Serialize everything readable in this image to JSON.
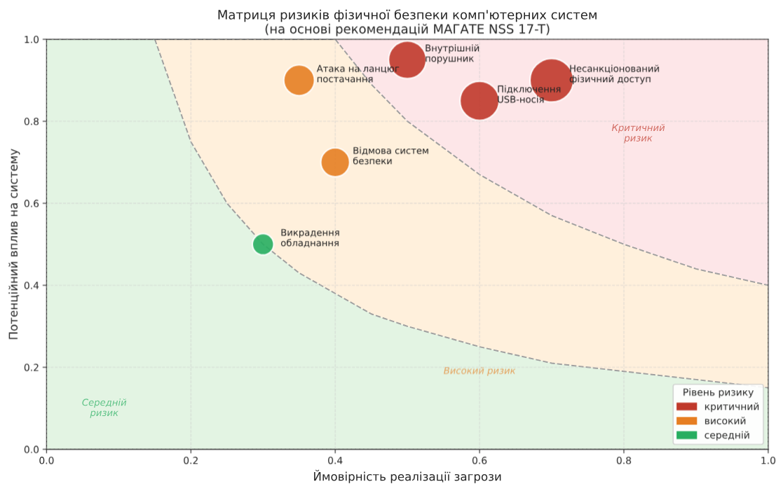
{
  "chart_data": {
    "type": "bubble",
    "title": "Матриця ризиків фізичної безпеки комп'ютерних систем\n(на основі рекомендацій МАГАТЕ NSS 17-T)",
    "xlabel": "Ймовірність реалізації загрози",
    "ylabel": "Потенційний вплив на систему",
    "legend_title": "Рівень ризику",
    "xlim": [
      0.0,
      1.0
    ],
    "ylim": [
      0.0,
      1.0
    ],
    "xticks": [
      "0.0",
      0.2,
      0.4,
      0.6,
      0.8,
      "1.0"
    ],
    "yticks": [
      "0.0",
      0.2,
      0.4,
      0.6,
      0.8,
      "1.0"
    ],
    "grid": true,
    "legend": "bottom right",
    "stacked": true,
    "series": [
      {
        "type": "area",
        "color": "#e3f4e3",
        "line_style": "dashed",
        "x": [
          0,
          0.15,
          0.2,
          0.25,
          0.3,
          0.35,
          0.4,
          0.45,
          0.5,
          0.6,
          0.7,
          0.8,
          0.9,
          1.0
        ],
        "values": [
          1,
          1,
          0.75,
          0.6,
          0.5,
          0.43,
          0.38,
          0.33,
          0.3,
          0.25,
          0.21,
          0.19,
          0.17,
          0.15
        ]
      },
      {
        "type": "area",
        "color": "#fff0dc",
        "line_style": "dashed",
        "x": [
          0,
          0.15,
          0.2,
          0.25,
          0.3,
          0.35,
          0.4,
          0.45,
          0.5,
          0.6,
          0.7,
          0.8,
          0.9,
          1.0
        ],
        "values": [
          0,
          0,
          0.25,
          0.4,
          0.5,
          0.57,
          0.62,
          0.56,
          0.5,
          0.42,
          0.36,
          0.31,
          0.27,
          0.25
        ]
      },
      {
        "type": "area",
        "color": "#fde6e8",
        "x": [
          0,
          0.15,
          0.2,
          0.25,
          0.3,
          0.35,
          0.4,
          0.45,
          0.5,
          0.6,
          0.7,
          0.8,
          0.9,
          1.0
        ],
        "values": [
          0,
          0,
          0,
          0,
          0,
          0,
          0,
          0.11,
          0.2,
          0.33,
          0.43,
          0.5,
          0.56,
          0.6
        ]
      },
      {
        "name": "критичний",
        "color": "#c0392b",
        "x": [
          0.5,
          0.6,
          0.7
        ],
        "values": [
          0.95,
          0.85,
          0.9
        ],
        "sizes": [
          0.75,
          0.81,
          1
        ]
      },
      {
        "name": "високий",
        "color": "#e67e22",
        "x": [
          0.35,
          0.4
        ],
        "values": [
          0.9,
          0.7
        ],
        "sizes": [
          0.5,
          0.44
        ]
      },
      {
        "name": "середній",
        "color": "#27ae60",
        "x": [
          0.3
        ],
        "values": [
          0.5
        ],
        "sizes": [
          0.24
        ]
      }
    ],
    "annotations": [
      {
        "text": "Внутрішній\nпорушник",
        "x": 0.5,
        "y": 0.95
      },
      {
        "text": "Підключення\nUSB-носія",
        "x": 0.6,
        "y": 0.85
      },
      {
        "text": "Несанкціонований\nфізичний доступ",
        "x": 0.7,
        "y": 0.9
      },
      {
        "text": "Атака на ланцюг\nпостачання",
        "x": 0.35,
        "y": 0.9
      },
      {
        "text": "Відмова систем\nбезпеки",
        "x": 0.4,
        "y": 0.7
      },
      {
        "text": "Викрадення\nобладнання",
        "x": 0.3,
        "y": 0.5
      },
      "Критичний\nризик",
      "Високий ризик",
      "Середній\nризик"
    ]
  }
}
